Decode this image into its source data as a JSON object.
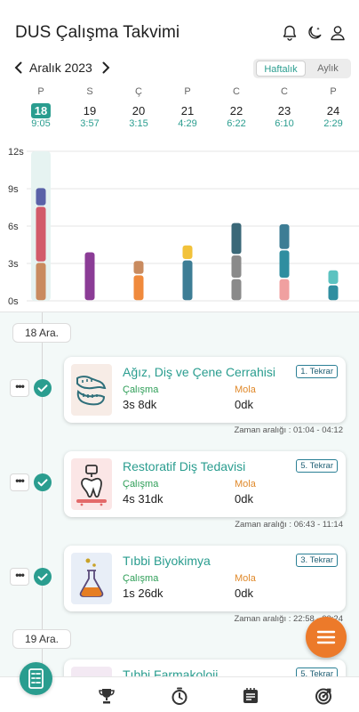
{
  "header": {
    "title": "DUS Çalışma Takvimi",
    "icons": [
      "bell-icon",
      "moon-icon",
      "user-icon"
    ]
  },
  "month_nav": {
    "label": "Aralık 2023",
    "view_toggle": {
      "weekly": "Haftalık",
      "monthly": "Aylık",
      "selected": "weekly"
    }
  },
  "days": [
    {
      "letter": "P",
      "number": "18",
      "time": "9:05",
      "selected": true
    },
    {
      "letter": "S",
      "number": "19",
      "time": "3:57",
      "selected": false
    },
    {
      "letter": "Ç",
      "number": "20",
      "time": "3:15",
      "selected": false
    },
    {
      "letter": "P",
      "number": "21",
      "time": "4:29",
      "selected": false
    },
    {
      "letter": "C",
      "number": "22",
      "time": "6:22",
      "selected": false
    },
    {
      "letter": "C",
      "number": "23",
      "time": "6:10",
      "selected": false
    },
    {
      "letter": "P",
      "number": "24",
      "time": "2:29",
      "selected": false
    }
  ],
  "chart_data": {
    "type": "bar",
    "stacked": true,
    "y_ticks": [
      "0s",
      "3s",
      "6s",
      "9s",
      "12s"
    ],
    "ylim": [
      0,
      12
    ],
    "grid": true,
    "days": [
      {
        "segments": [
          {
            "hours": 3.1,
            "color": "#c98b5f"
          },
          {
            "hours": 4.5,
            "color": "#d25b6a"
          },
          {
            "hours": 1.5,
            "color": "#5a62a8"
          }
        ],
        "target_hours": 12
      },
      {
        "segments": [
          {
            "hours": 3.95,
            "color": "#8b3c96"
          }
        ]
      },
      {
        "segments": [
          {
            "hours": 2.1,
            "color": "#f08a3c"
          },
          {
            "hours": 1.15,
            "color": "#c98b5f"
          }
        ]
      },
      {
        "segments": [
          {
            "hours": 3.3,
            "color": "#3d7d95"
          },
          {
            "hours": 1.2,
            "color": "#f2c23a"
          }
        ]
      },
      {
        "segments": [
          {
            "hours": 1.8,
            "color": "#8a8a8a"
          },
          {
            "hours": 1.9,
            "color": "#8a8a8a"
          },
          {
            "hours": 2.6,
            "color": "#3a6878"
          }
        ]
      },
      {
        "segments": [
          {
            "hours": 1.8,
            "color": "#f0a0a0"
          },
          {
            "hours": 2.3,
            "color": "#2f8ea0"
          },
          {
            "hours": 2.1,
            "color": "#3d7d95"
          }
        ]
      },
      {
        "segments": [
          {
            "hours": 1.3,
            "color": "#2f8ea0"
          },
          {
            "hours": 1.2,
            "color": "#5bc2c0"
          }
        ]
      }
    ]
  },
  "timeline": {
    "groups": [
      {
        "date": "18 Ara."
      },
      {
        "date": "19 Ara."
      }
    ],
    "sessions": [
      {
        "title": "Ağız, Diş ve Çene Cerrahisi",
        "badge": "1. Tekrar",
        "work_label": "Çalışma",
        "work_value": "3s 8dk",
        "break_label": "Mola",
        "break_value": "0dk",
        "range": "Zaman aralığı : 01:04 - 04:12",
        "thumb": "jaw-icon"
      },
      {
        "title": "Restoratif Diş Tedavisi",
        "badge": "5. Tekrar",
        "work_label": "Çalışma",
        "work_value": "4s 31dk",
        "break_label": "Mola",
        "break_value": "0dk",
        "range": "Zaman aralığı : 06:43 - 11:14",
        "thumb": "tooth-icon"
      },
      {
        "title": "Tıbbi Biyokimya",
        "badge": "3. Tekrar",
        "work_label": "Çalışma",
        "work_value": "1s 26dk",
        "break_label": "Mola",
        "break_value": "0dk",
        "range": "Zaman aralığı : 22:58 - 00:24",
        "thumb": "flask-icon"
      },
      {
        "title": "Tıbbi Farmakoloji",
        "badge": "5. Tekrar",
        "thumb": "pill-icon"
      }
    ],
    "more_label": "•••"
  },
  "bottom_nav": {
    "items": [
      "calendar-list-icon",
      "trophy-icon",
      "timer-icon",
      "notes-icon",
      "target-icon"
    ],
    "active": "calendar-list-icon"
  },
  "colors": {
    "accent": "#2a9d8f",
    "fab": "#ec7a2a",
    "work": "#2e9e57",
    "break": "#e0892a"
  }
}
